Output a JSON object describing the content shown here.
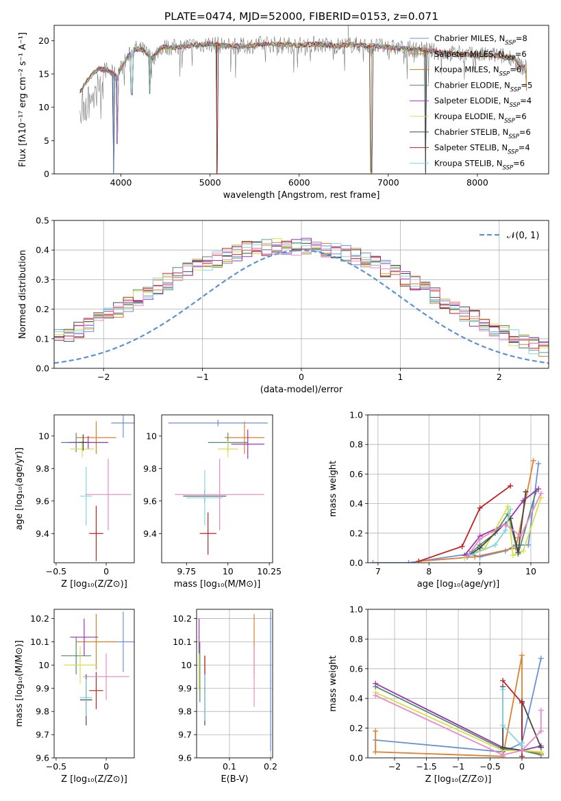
{
  "figure": {
    "title": "PLATE=0474, MJD=52000, FIBERID=0153, z=0.071"
  },
  "chart_data": [
    {
      "id": "spectrum",
      "type": "line",
      "xlabel": "wavelength [Angstrom, rest frame]",
      "ylabel": "Flux [fλ10⁻¹⁷ erg cm⁻² s⁻¹ A⁻¹]",
      "xlim": [
        3250,
        8800
      ],
      "ylim": [
        0,
        22.3
      ],
      "xticks": [
        4000,
        5000,
        6000,
        7000,
        8000
      ],
      "yticks": [
        0,
        5,
        10,
        15,
        20
      ],
      "legend_position": "top-right",
      "legend": [
        {
          "label": "Chabrier MILES, N",
          "sub": "SSP",
          "eq": "=8",
          "color": "#6a8fdd"
        },
        {
          "label": "Salpeter MILES, N",
          "sub": "SSP",
          "eq": "=6",
          "color": "#e07f2a"
        },
        {
          "label": "Kroupa MILES, N",
          "sub": "SSP",
          "eq": "=6",
          "color": "#c8761c"
        },
        {
          "label": "Chabrier ELODIE, N",
          "sub": "SSP",
          "eq": "=5",
          "color": "#4f8a6e"
        },
        {
          "label": "Salpeter ELODIE, N",
          "sub": "SSP",
          "eq": "=4",
          "color": "#9b30b0"
        },
        {
          "label": "Kroupa ELODIE, N",
          "sub": "SSP",
          "eq": "=6",
          "color": "#d7e04a"
        },
        {
          "label": "Chabrier STELIB, N",
          "sub": "SSP",
          "eq": "=6",
          "color": "#444444"
        },
        {
          "label": "Salpeter STELIB, N",
          "sub": "SSP",
          "eq": "=4",
          "color": "#c0201e"
        },
        {
          "label": "Kroupa STELIB, N",
          "sub": "SSP",
          "eq": "=6",
          "color": "#7fd6e0"
        }
      ],
      "continuum": {
        "x": [
          3550,
          3650,
          3750,
          3850,
          3950,
          4050,
          4150,
          4250,
          4350,
          4450,
          4600,
          4800,
          5000,
          5200,
          5400,
          5600,
          5800,
          6000,
          6200,
          6400,
          6600,
          6800,
          7000,
          7200,
          7400,
          7600,
          7800,
          8000,
          8200,
          8400,
          8500
        ],
        "y": [
          12.5,
          14.5,
          15.8,
          15.5,
          14.8,
          17.0,
          18.8,
          18.6,
          17.3,
          19.0,
          19.0,
          19.3,
          19.5,
          19.2,
          19.2,
          19.5,
          19.4,
          19.3,
          19.5,
          19.2,
          19.4,
          19.2,
          19.0,
          18.8,
          18.6,
          18.2,
          18.0,
          17.8,
          17.8,
          17.5,
          16.0
        ]
      },
      "dips": [
        {
          "x": 3915,
          "y": 0.0
        },
        {
          "x": 3955,
          "y": 4.5
        },
        {
          "x": 4120,
          "y": 11.8
        },
        {
          "x": 4320,
          "y": 12.0
        },
        {
          "x": 5075,
          "y": 0.0
        },
        {
          "x": 6810,
          "y": 0.0
        },
        {
          "x": 7420,
          "y": 0.0
        },
        {
          "x": 8550,
          "y": 12.5
        }
      ]
    },
    {
      "id": "residuals",
      "type": "histogram",
      "xlabel": "(data-model)/error",
      "ylabel": "Normed distribution",
      "xlim": [
        -2.5,
        2.5
      ],
      "ylim": [
        0,
        0.5
      ],
      "xticks": [
        -2,
        -1,
        0,
        1,
        2
      ],
      "yticks": [
        0.0,
        0.1,
        0.2,
        0.3,
        0.4,
        0.5
      ],
      "gaussian_label": "𝒩(0, 1)",
      "gaussian_color": "#5b8fd6",
      "bin_width": 0.1,
      "bin_start": -2.5,
      "colors": [
        "#6a8fdd",
        "#e07f2a",
        "#4f8a6e",
        "#9b30b0",
        "#d7e04a",
        "#444444",
        "#c0201e",
        "#7fd6e0",
        "#e888c8"
      ],
      "base": [
        0.022,
        0.025,
        0.03,
        0.035,
        0.042,
        0.05,
        0.058,
        0.066,
        0.078,
        0.09,
        0.102,
        0.115,
        0.13,
        0.147,
        0.165,
        0.183,
        0.2,
        0.22,
        0.24,
        0.258,
        0.276,
        0.294,
        0.312,
        0.328,
        0.344,
        0.358,
        0.37,
        0.382,
        0.392,
        0.4,
        0.404,
        0.408,
        0.41,
        0.412,
        0.412,
        0.41,
        0.408,
        0.402,
        0.396,
        0.388,
        0.378,
        0.366,
        0.352,
        0.336,
        0.32,
        0.302,
        0.284,
        0.264,
        0.245,
        0.225,
        0.205,
        0.186,
        0.168,
        0.15,
        0.134,
        0.118,
        0.103,
        0.09,
        0.078,
        0.067,
        0.058,
        0.05,
        0.043,
        0.037,
        0.032,
        0.027,
        0.024,
        0.021,
        0.018,
        0.016
      ],
      "bin_start_base": -3.5
    },
    {
      "id": "age-vs-Z",
      "type": "errorbar",
      "xlabel": "Z [log₁₀(Z/Z⊙)]",
      "ylabel": "age  [log₁₀(age/yr)]",
      "xlim": [
        -0.52,
        0.28
      ],
      "ylim": [
        9.22,
        10.13
      ],
      "xticks": [
        -0.5,
        0.0
      ],
      "yticks": [
        9.4,
        9.6,
        9.8,
        10.0
      ],
      "points": [
        {
          "x": 0.17,
          "xerr": 0.12,
          "y": 10.08,
          "yerr": 0.09,
          "color": "#6a8fdd"
        },
        {
          "x": -0.1,
          "xerr": 0.2,
          "y": 9.99,
          "yerr": 0.1,
          "color": "#e07f2a"
        },
        {
          "x": -0.3,
          "xerr": 0.15,
          "y": 9.96,
          "yerr": 0.06,
          "color": "#4f8a6e"
        },
        {
          "x": -0.18,
          "xerr": 0.2,
          "y": 9.96,
          "yerr": 0.04,
          "color": "#9b30b0"
        },
        {
          "x": -0.24,
          "xerr": 0.12,
          "y": 9.92,
          "yerr": 0.05,
          "color": "#d7e04a"
        },
        {
          "x": -0.23,
          "xerr": 0.04,
          "y": 9.96,
          "yerr": 0.05,
          "color": "#444444"
        },
        {
          "x": -0.1,
          "xerr": 0.07,
          "y": 9.4,
          "yerr": 0.17,
          "color": "#c0201e"
        },
        {
          "x": -0.2,
          "xerr": 0.06,
          "y": 9.63,
          "yerr": 0.18,
          "color": "#7fd6e0"
        },
        {
          "x": 0.02,
          "xerr": 0.23,
          "y": 9.64,
          "yerr": 0.22,
          "color": "#e888c8"
        }
      ]
    },
    {
      "id": "age-vs-mass",
      "type": "errorbar",
      "xlabel": "mass [log₁₀(M/M⊙)]",
      "ylabel": "",
      "xlim": [
        9.6,
        10.27
      ],
      "ylim": [
        9.22,
        10.13
      ],
      "xticks": [
        9.75,
        10.0,
        10.25
      ],
      "yticks": [
        9.4,
        9.6,
        9.8,
        10.0
      ],
      "points": [
        {
          "x": 9.94,
          "xerr": 0.3,
          "y": 10.08,
          "yerr": 0.02,
          "color": "#6a8fdd"
        },
        {
          "x": 10.1,
          "xerr": 0.12,
          "y": 9.99,
          "yerr": 0.1,
          "color": "#e07f2a"
        },
        {
          "x": 10.0,
          "xerr": 0.12,
          "y": 9.96,
          "yerr": 0.06,
          "color": "#4f8a6e"
        },
        {
          "x": 10.12,
          "xerr": 0.1,
          "y": 9.95,
          "yerr": 0.09,
          "color": "#9b30b0"
        },
        {
          "x": 10.0,
          "xerr": 0.06,
          "y": 9.92,
          "yerr": 0.05,
          "color": "#d7e04a"
        },
        {
          "x": 9.86,
          "xerr": 0.13,
          "y": 9.63,
          "yerr": 0.04,
          "color": "#444444"
        },
        {
          "x": 9.88,
          "xerr": 0.05,
          "y": 9.4,
          "yerr": 0.13,
          "color": "#c0201e"
        },
        {
          "x": 9.86,
          "xerr": 0.11,
          "y": 9.62,
          "yerr": 0.17,
          "color": "#7fd6e0"
        },
        {
          "x": 9.95,
          "xerr": 0.27,
          "y": 9.64,
          "yerr": 0.22,
          "color": "#e888c8"
        }
      ]
    },
    {
      "id": "weight-vs-age",
      "type": "line",
      "xlabel": "age  [log₁₀(age/yr)]",
      "ylabel": "mass weight",
      "xlim": [
        6.8,
        10.35
      ],
      "ylim": [
        0,
        1
      ],
      "xticks": [
        7,
        8,
        9,
        10
      ],
      "yticks": [
        0.0,
        0.2,
        0.4,
        0.6,
        0.8,
        1.0
      ],
      "series": [
        {
          "color": "#6a8fdd",
          "x": [
            6.9,
            7.6,
            8.8,
            9.0,
            9.5,
            9.7,
            9.95,
            10.15
          ],
          "y": [
            0.0,
            0.0,
            0.06,
            0.04,
            0.08,
            0.12,
            0.12,
            0.67
          ]
        },
        {
          "color": "#e07f2a",
          "x": [
            7.8,
            8.9,
            9.7,
            9.75,
            10.05
          ],
          "y": [
            0.01,
            0.04,
            0.1,
            0.17,
            0.69
          ]
        },
        {
          "color": "#4f8a6e",
          "x": [
            8.8,
            9.0,
            9.3,
            9.55,
            9.75,
            10.1
          ],
          "y": [
            0.06,
            0.12,
            0.2,
            0.33,
            0.06,
            0.48
          ]
        },
        {
          "color": "#9b30b0",
          "x": [
            8.7,
            9.0,
            9.5,
            9.85,
            10.15
          ],
          "y": [
            0.05,
            0.18,
            0.26,
            0.42,
            0.5
          ]
        },
        {
          "color": "#d7e04a",
          "x": [
            8.7,
            9.1,
            9.55,
            9.65,
            9.85,
            10.2
          ],
          "y": [
            0.03,
            0.1,
            0.38,
            0.05,
            0.08,
            0.44
          ]
        },
        {
          "color": "#444444",
          "x": [
            8.75,
            9.0,
            9.6,
            9.75,
            9.9
          ],
          "y": [
            0.04,
            0.1,
            0.3,
            0.07,
            0.48
          ]
        },
        {
          "color": "#c0201e",
          "x": [
            7.8,
            8.65,
            9.0,
            9.6
          ],
          "y": [
            0.01,
            0.11,
            0.37,
            0.52
          ]
        },
        {
          "color": "#7fd6e0",
          "x": [
            8.8,
            9.3,
            9.5,
            9.6
          ],
          "y": [
            0.05,
            0.12,
            0.22,
            0.36
          ]
        },
        {
          "color": "#e888c8",
          "x": [
            8.75,
            9.0,
            9.5,
            9.8,
            10.2
          ],
          "y": [
            0.04,
            0.16,
            0.26,
            0.18,
            0.47
          ]
        }
      ]
    },
    {
      "id": "mass-vs-Z",
      "type": "errorbar",
      "xlabel": "Z [log₁₀(Z/Z⊙)]",
      "ylabel": "mass [log₁₀(M/M⊙)]",
      "xlim": [
        -0.52,
        0.28
      ],
      "ylim": [
        9.6,
        10.24
      ],
      "xticks": [
        -0.5,
        0.0
      ],
      "yticks": [
        9.6,
        9.7,
        9.8,
        9.9,
        10.0,
        10.1,
        10.2
      ],
      "points": [
        {
          "x": 0.17,
          "xerr": 0.12,
          "y": 10.1,
          "yerr": 0.13,
          "color": "#6a8fdd"
        },
        {
          "x": -0.1,
          "xerr": 0.2,
          "y": 10.1,
          "yerr": 0.12,
          "color": "#e07f2a"
        },
        {
          "x": -0.3,
          "xerr": 0.15,
          "y": 10.04,
          "yerr": 0.08,
          "color": "#4f8a6e"
        },
        {
          "x": -0.22,
          "xerr": 0.14,
          "y": 10.12,
          "yerr": 0.08,
          "color": "#9b30b0"
        },
        {
          "x": -0.26,
          "xerr": 0.16,
          "y": 10.0,
          "yerr": 0.08,
          "color": "#d7e04a"
        },
        {
          "x": -0.2,
          "xerr": 0.06,
          "y": 9.85,
          "yerr": 0.11,
          "color": "#444444"
        },
        {
          "x": -0.1,
          "xerr": 0.07,
          "y": 9.89,
          "yerr": 0.08,
          "color": "#c0201e"
        },
        {
          "x": -0.2,
          "xerr": 0.06,
          "y": 9.86,
          "yerr": 0.08,
          "color": "#7fd6e0"
        },
        {
          "x": 0.0,
          "xerr": 0.23,
          "y": 9.95,
          "yerr": 0.1,
          "color": "#e888c8"
        }
      ]
    },
    {
      "id": "mass-vs-EBV",
      "type": "errorbar",
      "xlabel": "E(B-V)",
      "ylabel": "",
      "xlim": [
        0.02,
        0.205
      ],
      "ylim": [
        9.6,
        10.24
      ],
      "xticks": [
        0.1,
        0.2
      ],
      "yticks": [
        9.6,
        9.7,
        9.8,
        9.9,
        10.0,
        10.1,
        10.2
      ],
      "points": [
        {
          "x": 0.2,
          "y": 9.93,
          "yerr": 0.3,
          "color": "#6a8fdd"
        },
        {
          "x": 0.16,
          "y": 10.09,
          "yerr": 0.13,
          "color": "#e07f2a"
        },
        {
          "x": 0.028,
          "y": 9.97,
          "yerr": 0.13,
          "color": "#4f8a6e"
        },
        {
          "x": 0.026,
          "y": 10.12,
          "yerr": 0.08,
          "color": "#9b30b0"
        },
        {
          "x": 0.026,
          "y": 9.97,
          "yerr": 0.08,
          "color": "#d7e04a"
        },
        {
          "x": 0.04,
          "y": 9.89,
          "yerr": 0.15,
          "color": "#444444"
        },
        {
          "x": 0.04,
          "y": 9.9,
          "yerr": 0.14,
          "color": "#c0201e"
        },
        {
          "x": 0.04,
          "y": 9.86,
          "yerr": 0.1,
          "color": "#7fd6e0"
        },
        {
          "x": 0.16,
          "y": 9.95,
          "yerr": 0.13,
          "color": "#e888c8"
        }
      ]
    },
    {
      "id": "weight-vs-Z",
      "type": "line",
      "xlabel": "Z [log₁₀(Z/Z⊙)]",
      "ylabel": "mass weight",
      "xlim": [
        -2.42,
        0.42
      ],
      "ylim": [
        0,
        1
      ],
      "xticks": [
        -2.0,
        -1.5,
        -1.0,
        -0.5,
        0.0
      ],
      "yticks": [
        0.0,
        0.2,
        0.4,
        0.6,
        0.8,
        1.0
      ],
      "series": [
        {
          "color": "#6a8fdd",
          "x": [
            -2.3,
            -0.3,
            0.0,
            0.3
          ],
          "y": [
            0.12,
            0.04,
            0.1,
            0.67
          ]
        },
        {
          "color": "#e07f2a",
          "x": [
            -2.3,
            -2.3,
            -0.3,
            0.0,
            0.0,
            0.3
          ],
          "y": [
            0.18,
            0.04,
            0.01,
            0.69,
            0.05,
            0.03
          ]
        },
        {
          "color": "#4f8a6e",
          "x": [
            -2.3,
            -0.3,
            0.0,
            0.3
          ],
          "y": [
            0.48,
            0.06,
            0.05,
            0.02
          ]
        },
        {
          "color": "#9b30b0",
          "x": [
            -2.3,
            -0.3,
            0.0,
            0.3
          ],
          "y": [
            0.5,
            0.07,
            0.05,
            0.08
          ]
        },
        {
          "color": "#d7e04a",
          "x": [
            -2.3,
            -0.3,
            0.0,
            0.3
          ],
          "y": [
            0.44,
            0.05,
            0.05,
            0.04
          ]
        },
        {
          "color": "#444444",
          "x": [
            -0.3,
            -0.3,
            0.0,
            0.0,
            0.3
          ],
          "y": [
            0.48,
            0.07,
            0.05,
            0.38,
            0.07
          ]
        },
        {
          "color": "#c0201e",
          "x": [
            -0.3,
            0.0,
            0.0
          ],
          "y": [
            0.52,
            0.37,
            0.01
          ]
        },
        {
          "color": "#7fd6e0",
          "x": [
            -0.3,
            -0.3,
            0.0,
            0.0
          ],
          "y": [
            0.46,
            0.22,
            0.08,
            0.1
          ]
        },
        {
          "color": "#e888c8",
          "x": [
            -2.3,
            -0.3,
            0.0,
            0.3,
            0.3
          ],
          "y": [
            0.42,
            0.02,
            0.05,
            0.18,
            0.32
          ]
        }
      ]
    }
  ]
}
